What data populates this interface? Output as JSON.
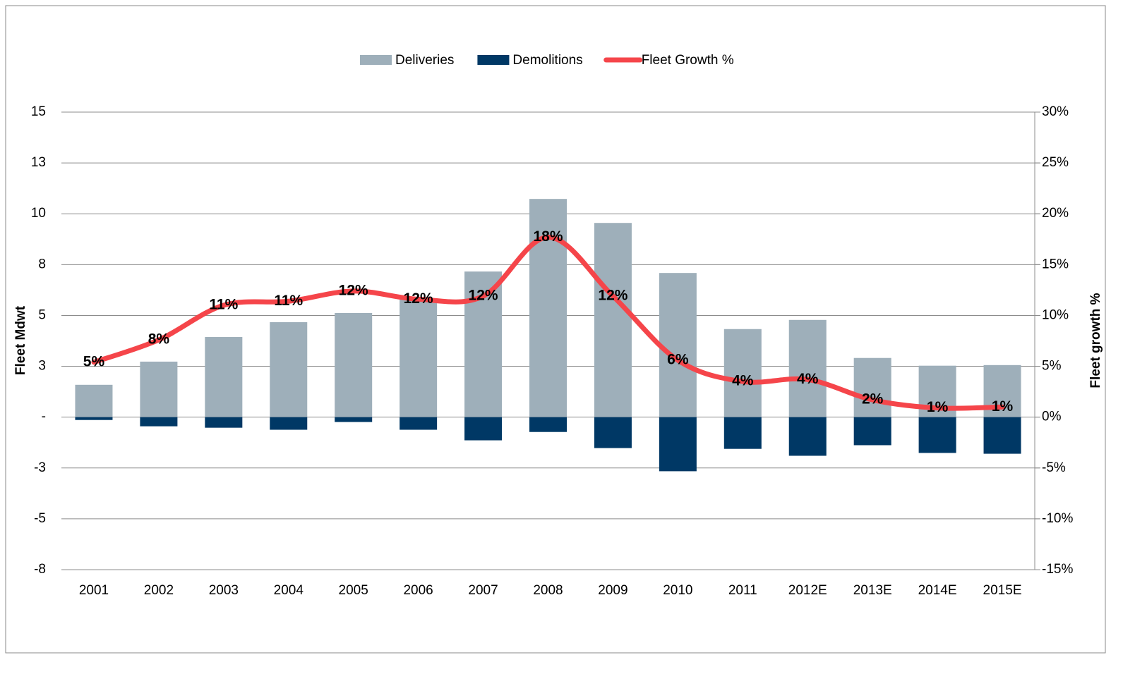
{
  "chart_data": {
    "type": "bar",
    "categories": [
      "2001",
      "2002",
      "2003",
      "2004",
      "2005",
      "2006",
      "2007",
      "2008",
      "2009",
      "2010",
      "2011",
      "2012E",
      "2013E",
      "2014E",
      "2015E"
    ],
    "series": [
      {
        "name": "Deliveries",
        "color": "#9eafba",
        "values": [
          1.59,
          2.73,
          3.94,
          4.67,
          5.12,
          5.78,
          7.16,
          10.73,
          9.55,
          7.09,
          4.33,
          4.78,
          2.91,
          2.53,
          2.56
        ]
      },
      {
        "name": "Demolitions",
        "color": "#003865",
        "values": [
          -0.14,
          -0.45,
          -0.52,
          -0.62,
          -0.24,
          -0.62,
          -1.14,
          -0.73,
          -1.52,
          -2.66,
          -1.56,
          -1.9,
          -1.38,
          -1.76,
          -1.8
        ]
      },
      {
        "name": "Fleet Growth %",
        "color": "#f5454a",
        "type": "line",
        "axis": "y2",
        "values": [
          5.4,
          7.6,
          11.0,
          11.4,
          12.4,
          11.6,
          11.9,
          17.7,
          11.9,
          5.6,
          3.5,
          3.7,
          1.7,
          0.9,
          1.0
        ],
        "value_labels": [
          "5%",
          "8%",
          "11%",
          "11%",
          "12%",
          "12%",
          "12%",
          "18%",
          "12%",
          "6%",
          "4%",
          "4%",
          "2%",
          "1%",
          "1%"
        ]
      }
    ],
    "ylabel": "Fleet Mdwt",
    "y2label": "Fleet growth %",
    "ylim": [
      -7.5,
      15
    ],
    "yticks": [
      {
        "value": -7.5,
        "label": "-8"
      },
      {
        "value": -5,
        "label": "-5"
      },
      {
        "value": -2.5,
        "label": "-3"
      },
      {
        "value": 0,
        "label": "-"
      },
      {
        "value": 2.5,
        "label": "3"
      },
      {
        "value": 5,
        "label": "5"
      },
      {
        "value": 7.5,
        "label": "8"
      },
      {
        "value": 10,
        "label": "10"
      },
      {
        "value": 12.5,
        "label": "13"
      },
      {
        "value": 15,
        "label": "15"
      }
    ],
    "y2lim": [
      -15,
      30
    ],
    "y2ticks": [
      {
        "value": -15,
        "label": "-15%"
      },
      {
        "value": -10,
        "label": "-10%"
      },
      {
        "value": -5,
        "label": "-5%"
      },
      {
        "value": 0,
        "label": "0%"
      },
      {
        "value": 5,
        "label": "5%"
      },
      {
        "value": 10,
        "label": "10%"
      },
      {
        "value": 15,
        "label": "15%"
      },
      {
        "value": 20,
        "label": "20%"
      },
      {
        "value": 25,
        "label": "25%"
      },
      {
        "value": 30,
        "label": "30%"
      }
    ],
    "grid": true,
    "legend": "top"
  }
}
